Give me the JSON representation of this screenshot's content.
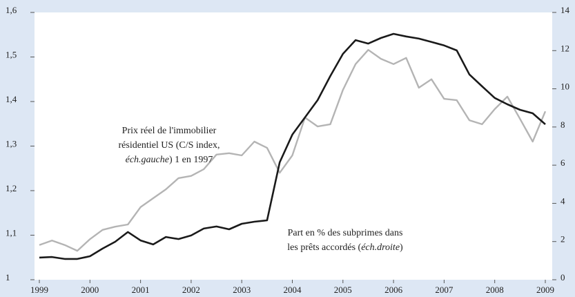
{
  "chart_data": {
    "type": "line",
    "x": [
      1999,
      1999.25,
      1999.5,
      1999.75,
      2000,
      2000.25,
      2000.5,
      2000.75,
      2001,
      2001.25,
      2001.5,
      2001.75,
      2002,
      2002.25,
      2002.5,
      2002.75,
      2003,
      2003.25,
      2003.5,
      2003.75,
      2004,
      2004.25,
      2004.5,
      2004.75,
      2005,
      2005.25,
      2005.5,
      2005.75,
      2006,
      2006.25,
      2006.5,
      2006.75,
      2007,
      2007.25,
      2007.5,
      2007.75,
      2008,
      2008.25,
      2008.5,
      2008.75,
      2009
    ],
    "xlim": [
      1999,
      2009
    ],
    "xticks": [
      1999,
      2000,
      2001,
      2002,
      2003,
      2004,
      2005,
      2006,
      2007,
      2008,
      2009
    ],
    "ylim": [
      1,
      1.6
    ],
    "yticks": [
      1,
      {
        "value": 1.1,
        "label": "1,1"
      },
      {
        "value": 1.2,
        "label": "1,2"
      },
      {
        "value": 1.3,
        "label": "1,3"
      },
      {
        "value": 1.4,
        "label": "1,4"
      },
      {
        "value": 1.5,
        "label": "1,5"
      },
      {
        "value": 1.6,
        "label": "1,6"
      }
    ],
    "y2lim": [
      0,
      14
    ],
    "y2ticks": [
      0,
      2,
      4,
      6,
      8,
      10,
      12,
      14
    ],
    "series": [
      {
        "color": "#b4b4b4",
        "axis": "y",
        "values": [
          1.078,
          1.088,
          1.078,
          1.065,
          1.091,
          1.112,
          1.119,
          1.124,
          1.163,
          1.183,
          1.203,
          1.228,
          1.233,
          1.248,
          1.281,
          1.284,
          1.279,
          1.31,
          1.296,
          1.24,
          1.279,
          1.364,
          1.344,
          1.349,
          1.426,
          1.484,
          1.516,
          1.496,
          1.484,
          1.498,
          1.431,
          1.45,
          1.406,
          1.403,
          1.358,
          1.349,
          1.383,
          1.411,
          1.361,
          1.31,
          1.378
        ]
      },
      {
        "color": "#1a1a1a",
        "axis": "y2",
        "values": [
          1.16,
          1.19,
          1.09,
          1.09,
          1.23,
          1.63,
          1.99,
          2.5,
          2.06,
          1.85,
          2.24,
          2.13,
          2.32,
          2.68,
          2.79,
          2.64,
          2.93,
          3.04,
          3.11,
          6.15,
          7.6,
          8.5,
          9.41,
          10.67,
          11.83,
          12.55,
          12.37,
          12.66,
          12.88,
          12.74,
          12.63,
          12.45,
          12.27,
          12.01,
          10.75,
          10.13,
          9.52,
          9.19,
          8.9,
          8.72,
          8.14
        ]
      }
    ],
    "annotations": [
      {
        "lines": [
          [
            {
              "text": "Prix réel de l'immobilier",
              "italic": false
            }
          ],
          [
            {
              "text": "résidentiel US (C/S index,",
              "italic": false
            }
          ],
          [
            {
              "text": "éch.gauche",
              "italic": true
            },
            {
              "text": ") 1 en 1997",
              "italic": false
            }
          ]
        ]
      },
      {
        "lines": [
          [
            {
              "text": "Part en % des subprimes dans",
              "italic": false
            }
          ],
          [
            {
              "text": "les prêts accordés (",
              "italic": false
            },
            {
              "text": "éch.droite",
              "italic": true
            },
            {
              "text": ")",
              "italic": false
            }
          ]
        ]
      }
    ]
  }
}
